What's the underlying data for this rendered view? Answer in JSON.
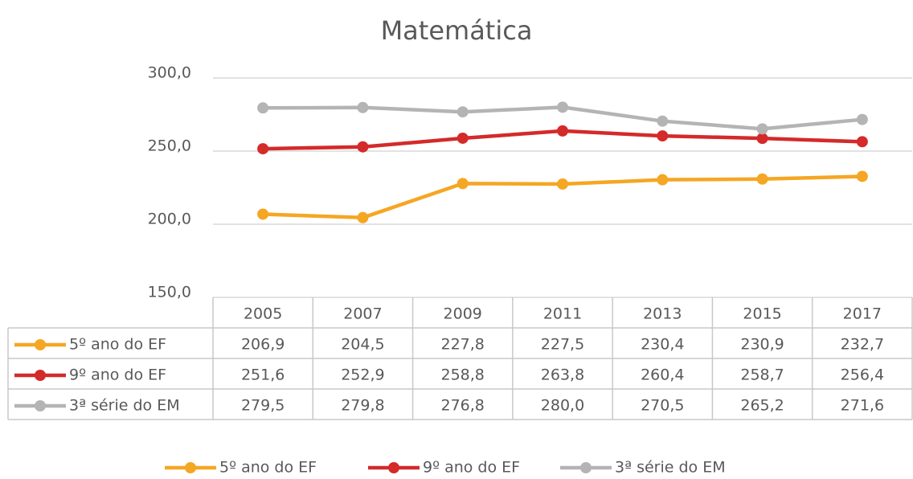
{
  "chart_data": {
    "type": "line",
    "title": "Matemática",
    "categories": [
      "2005",
      "2007",
      "2009",
      "2011",
      "2013",
      "2015",
      "2017"
    ],
    "series": [
      {
        "name": "5º ano do EF",
        "color": "#f5a623",
        "values": [
          206.9,
          204.5,
          227.8,
          227.5,
          230.4,
          230.9,
          232.7
        ],
        "value_labels": [
          "206,9",
          "204,5",
          "227,8",
          "227,5",
          "230,4",
          "230,9",
          "232,7"
        ]
      },
      {
        "name": "9º ano do EF",
        "color": "#d42a2a",
        "values": [
          251.6,
          252.9,
          258.8,
          263.8,
          260.4,
          258.7,
          256.4
        ],
        "value_labels": [
          "251,6",
          "252,9",
          "258,8",
          "263,8",
          "260,4",
          "258,7",
          "256,4"
        ]
      },
      {
        "name": "3ª série do EM",
        "color": "#b4b4b4",
        "values": [
          279.5,
          279.8,
          276.8,
          280.0,
          270.5,
          265.2,
          271.6
        ],
        "value_labels": [
          "279,5",
          "279,8",
          "276,8",
          "280,0",
          "270,5",
          "265,2",
          "271,6"
        ]
      }
    ],
    "ylim": [
      150,
      300
    ],
    "yticks": [
      {
        "value": 150,
        "label": "150,0"
      },
      {
        "value": 200,
        "label": "200,0"
      },
      {
        "value": 250,
        "label": "250,0"
      },
      {
        "value": 300,
        "label": "300,0"
      }
    ],
    "grid": true,
    "legend": "bottom"
  }
}
